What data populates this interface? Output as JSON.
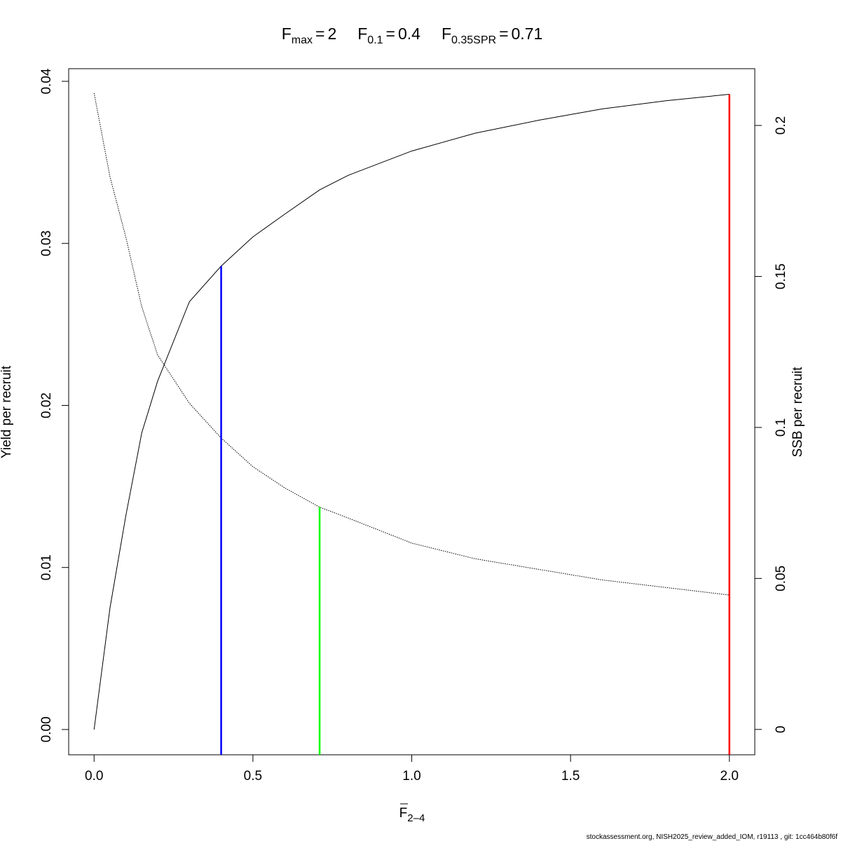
{
  "chart_data": {
    "type": "line",
    "title": [
      {
        "symbol": "F",
        "subscript": "max",
        "operator": "=",
        "value": 2
      },
      {
        "symbol": "F",
        "subscript": "0.1",
        "operator": "=",
        "value": 0.4
      },
      {
        "symbol": "F",
        "subscript": "0.35SPR",
        "operator": "=",
        "value": 0.71
      }
    ],
    "x_label": {
      "symbol": "F",
      "subscript": "2–4"
    },
    "y_label": "Yield per recruit",
    "y2_label": "SSB per recruit",
    "footer": "stockassessment.org, NISH2025_review_added_IOM, r19113 , git: 1cc464b80f6f",
    "x": [
      0,
      0.05,
      0.1,
      0.15,
      0.2,
      0.3,
      0.4,
      0.5,
      0.6,
      0.71,
      0.8,
      1.0,
      1.2,
      1.4,
      1.6,
      1.8,
      2.0
    ],
    "series": [
      {
        "name": "Yield per recruit",
        "color": "#000000",
        "dash": "solid",
        "values": [
          0,
          0.0075,
          0.0132,
          0.0183,
          0.0215,
          0.0264,
          0.0286,
          0.0304,
          0.0318,
          0.0333,
          0.0342,
          0.0357,
          0.0368,
          0.0376,
          0.0383,
          0.0388,
          0.0392
        ]
      },
      {
        "name": "SSB per recruit",
        "color": "#000000",
        "dash": "dotted",
        "axis": "y2",
        "values": [
          0.2107,
          0.183,
          0.163,
          0.14,
          0.124,
          0.108,
          0.0965,
          0.087,
          0.08,
          0.0736,
          0.07,
          0.0617,
          0.0565,
          0.053,
          0.0495,
          0.047,
          0.0445
        ]
      }
    ],
    "reference_lines": [
      {
        "x": 2,
        "end": 0.0392,
        "axis": "y",
        "color": "#ff0000"
      },
      {
        "x": 0.4,
        "end": 0.0286,
        "axis": "y",
        "color": "#0000ff"
      },
      {
        "x": 0.71,
        "end": 0.0736,
        "axis": "y2",
        "color": "#00ff00"
      }
    ],
    "xlim": [
      -0.08,
      2.08
    ],
    "xticks": [
      {
        "value": 0,
        "label": "0.0"
      },
      0.5,
      {
        "value": 1,
        "label": "1.0"
      },
      1.5,
      {
        "value": 2,
        "label": "2.0"
      }
    ],
    "ylim": [
      -0.00156,
      0.04078
    ],
    "yticks": [
      {
        "value": 0,
        "label": "0.00"
      },
      0.01,
      0.02,
      0.03,
      0.04
    ],
    "y2lim": [
      -0.0084,
      0.2188
    ],
    "y2ticks": [
      0,
      0.05,
      0.1,
      0.15,
      0.2
    ]
  }
}
